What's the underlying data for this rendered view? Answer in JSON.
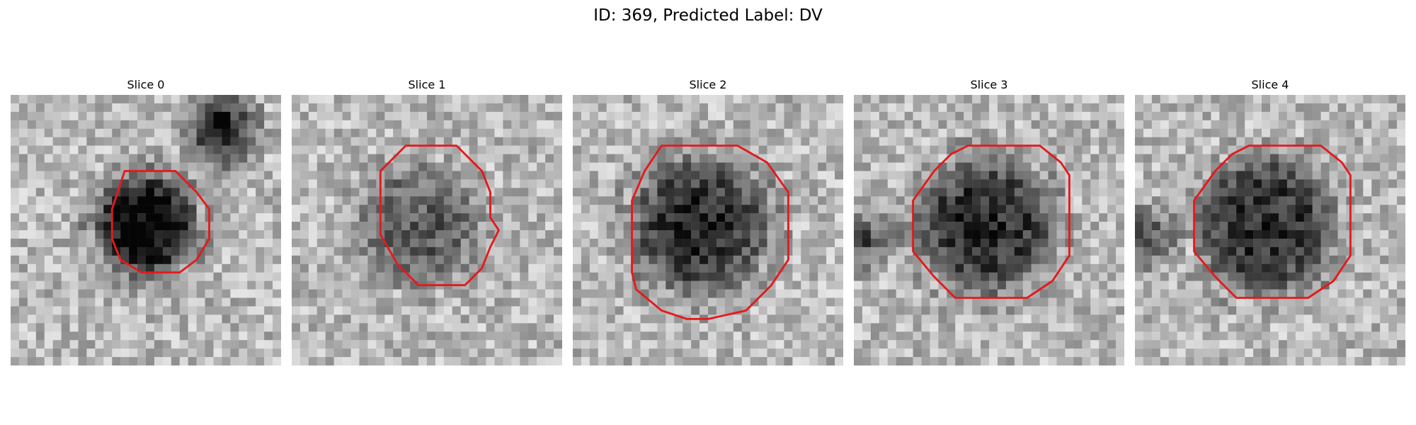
{
  "figure": {
    "title": "ID: 369, Predicted Label: DV"
  },
  "panels": [
    {
      "title": "Slice 0"
    },
    {
      "title": "Slice 1"
    },
    {
      "title": "Slice 2"
    },
    {
      "title": "Slice 3"
    },
    {
      "title": "Slice 4"
    }
  ],
  "colors": {
    "contour": "#e41a1c",
    "colormap": "grayscale"
  }
}
